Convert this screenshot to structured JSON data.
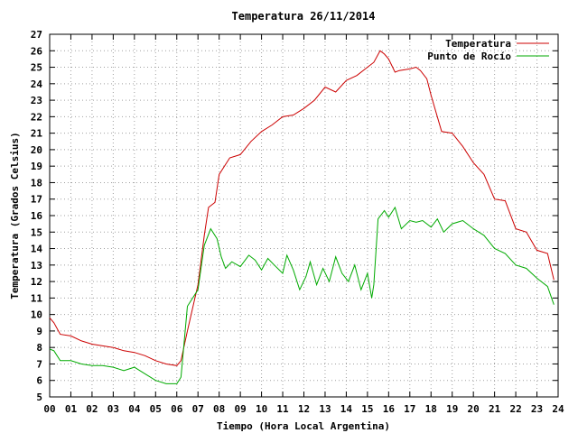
{
  "chart_data": {
    "type": "line",
    "title": "Temperatura 26/11/2014",
    "xlabel": "Tiempo (Hora Local Argentina)",
    "ylabel": "Temperatura (Grados Celsius)",
    "xlim": [
      0,
      24
    ],
    "ylim": [
      5,
      27
    ],
    "grid": true,
    "legend_position": "top-right",
    "x_ticks": [
      "00",
      "01",
      "02",
      "03",
      "04",
      "05",
      "06",
      "07",
      "08",
      "09",
      "10",
      "11",
      "12",
      "13",
      "14",
      "15",
      "16",
      "17",
      "18",
      "19",
      "20",
      "21",
      "22",
      "23",
      "24"
    ],
    "y_ticks": [
      "5",
      "6",
      "7",
      "8",
      "9",
      "10",
      "11",
      "12",
      "13",
      "14",
      "15",
      "16",
      "17",
      "18",
      "19",
      "20",
      "21",
      "22",
      "23",
      "24",
      "25",
      "26",
      "27"
    ],
    "series": [
      {
        "name": "Temperatura",
        "color": "#cc0000",
        "x": [
          0,
          0.2,
          0.5,
          1.0,
          1.5,
          2.0,
          2.5,
          3.0,
          3.5,
          4.0,
          4.5,
          5.0,
          5.5,
          6.0,
          6.2,
          6.5,
          7.0,
          7.3,
          7.5,
          7.8,
          8.0,
          8.5,
          9.0,
          9.5,
          10.0,
          10.5,
          11.0,
          11.5,
          12.0,
          12.5,
          13.0,
          13.5,
          14.0,
          14.5,
          15.0,
          15.3,
          15.6,
          15.8,
          16.0,
          16.3,
          16.5,
          17.0,
          17.3,
          17.5,
          17.8,
          18.0,
          18.5,
          19.0,
          19.5,
          20.0,
          20.5,
          21.0,
          21.5,
          22.0,
          22.5,
          23.0,
          23.5,
          23.8
        ],
        "y": [
          9.8,
          9.5,
          8.8,
          8.7,
          8.4,
          8.2,
          8.1,
          8.0,
          7.8,
          7.7,
          7.5,
          7.2,
          7.0,
          6.9,
          7.2,
          9.0,
          11.8,
          14.8,
          16.5,
          16.8,
          18.5,
          19.5,
          19.7,
          20.5,
          21.1,
          21.5,
          22.0,
          22.1,
          22.5,
          23.0,
          23.8,
          23.5,
          24.2,
          24.5,
          25.0,
          25.3,
          26.0,
          25.8,
          25.5,
          24.7,
          24.8,
          24.9,
          25.0,
          24.8,
          24.3,
          23.3,
          21.1,
          21.0,
          20.2,
          19.2,
          18.5,
          17.0,
          16.9,
          15.2,
          15.0,
          13.9,
          13.7,
          12.1
        ]
      },
      {
        "name": "Punto de Rocío",
        "color": "#00aa00",
        "x": [
          0,
          0.2,
          0.5,
          1.0,
          1.5,
          2.0,
          2.5,
          3.0,
          3.5,
          4.0,
          4.5,
          5.0,
          5.5,
          6.0,
          6.2,
          6.5,
          7.0,
          7.3,
          7.6,
          7.9,
          8.1,
          8.3,
          8.6,
          9.0,
          9.4,
          9.7,
          10.0,
          10.3,
          10.6,
          11.0,
          11.2,
          11.5,
          11.8,
          12.1,
          12.3,
          12.6,
          12.9,
          13.2,
          13.5,
          13.8,
          14.1,
          14.4,
          14.7,
          15.0,
          15.2,
          15.3,
          15.5,
          15.8,
          16.0,
          16.3,
          16.6,
          17.0,
          17.3,
          17.6,
          18.0,
          18.3,
          18.6,
          19.0,
          19.5,
          20.0,
          20.5,
          21.0,
          21.5,
          22.0,
          22.5,
          23.0,
          23.5,
          23.8
        ],
        "y": [
          7.9,
          7.8,
          7.2,
          7.2,
          7.0,
          6.9,
          6.9,
          6.8,
          6.6,
          6.8,
          6.4,
          6.0,
          5.8,
          5.8,
          6.2,
          10.5,
          11.5,
          14.2,
          15.2,
          14.6,
          13.5,
          12.8,
          13.2,
          12.9,
          13.6,
          13.3,
          12.7,
          13.4,
          13.0,
          12.5,
          13.6,
          12.7,
          11.5,
          12.3,
          13.2,
          11.8,
          12.8,
          12.0,
          13.5,
          12.5,
          12.0,
          13.0,
          11.5,
          12.5,
          11.0,
          11.8,
          15.8,
          16.3,
          15.9,
          16.5,
          15.2,
          15.7,
          15.6,
          15.7,
          15.3,
          15.8,
          15.0,
          15.5,
          15.7,
          15.2,
          14.8,
          14.0,
          13.7,
          13.0,
          12.8,
          12.2,
          11.7,
          10.6
        ]
      }
    ]
  }
}
